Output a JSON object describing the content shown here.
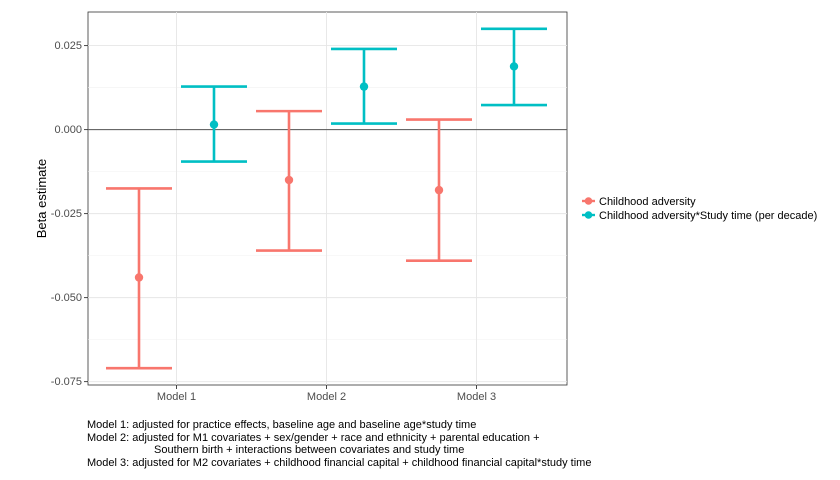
{
  "chart_data": {
    "type": "errorbar",
    "ylabel": "Beta estimate",
    "xlabel": "",
    "ylim": [
      -0.076,
      0.035
    ],
    "yticks": [
      -0.075,
      -0.05,
      -0.025,
      0.0,
      0.025
    ],
    "ytick_labels": [
      "-0.075",
      "-0.050",
      "-0.025",
      "0.000",
      "0.025"
    ],
    "categories": [
      "Model 1",
      "Model 2",
      "Model 3"
    ],
    "reference_line": 0.0,
    "grid": true,
    "legend_position": "right",
    "series": [
      {
        "name": "Childhood adversity",
        "color": "#F8766D",
        "estimates": [
          -0.044,
          -0.015,
          -0.018
        ],
        "lower": [
          -0.071,
          -0.036,
          -0.039
        ],
        "upper": [
          -0.0175,
          0.0055,
          0.003
        ]
      },
      {
        "name": "Childhood adversity*Study time (per decade)",
        "color": "#00BFC4",
        "estimates": [
          0.0015,
          0.0128,
          0.0188
        ],
        "lower": [
          -0.0095,
          0.0018,
          0.0073
        ],
        "upper": [
          0.0128,
          0.024,
          0.03
        ]
      }
    ]
  },
  "caption": {
    "line1": "Model 1: adjusted for practice effects, baseline age and baseline age*study time",
    "line2": "Model 2: adjusted for M1 covariates + sex/gender + race and ethnicity + parental education +",
    "line2b": "Southern birth + interactions between covariates and study time",
    "line3": "Model 3: adjusted for M2 covariates + childhood financial capital + childhood financial capital*study time"
  }
}
